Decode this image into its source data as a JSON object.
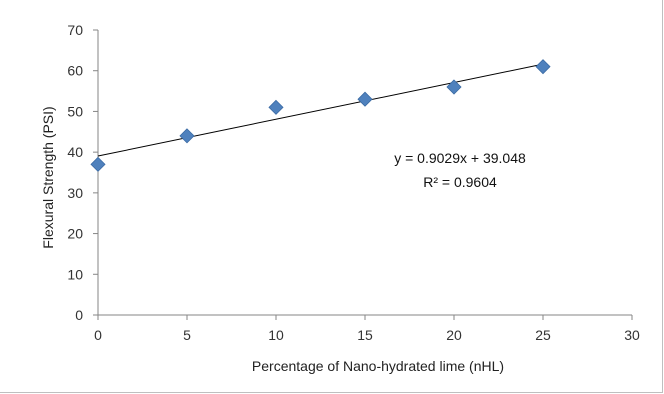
{
  "chart_data": {
    "type": "scatter",
    "xlabel": "Percentage of Nano-hydrated lime (nHL)",
    "ylabel": "Flexural Strength (PSI)",
    "xlim": [
      0,
      30
    ],
    "ylim": [
      0,
      70
    ],
    "x_ticks": [
      0,
      5,
      10,
      15,
      20,
      25,
      30
    ],
    "y_ticks": [
      0,
      10,
      20,
      30,
      40,
      50,
      60,
      70
    ],
    "grid": false,
    "series": [
      {
        "x": [
          0,
          5,
          10,
          15,
          20,
          25
        ],
        "y": [
          37,
          44,
          51,
          53,
          56,
          61
        ],
        "marker": "diamond",
        "color": "#4f81bd"
      }
    ],
    "trendline": {
      "type": "linear",
      "slope": 0.9029,
      "intercept": 39.048,
      "color": "#000000"
    },
    "annotations": {
      "equation": "y = 0.9029x + 39.048",
      "r_squared": "R² = 0.9604"
    }
  }
}
